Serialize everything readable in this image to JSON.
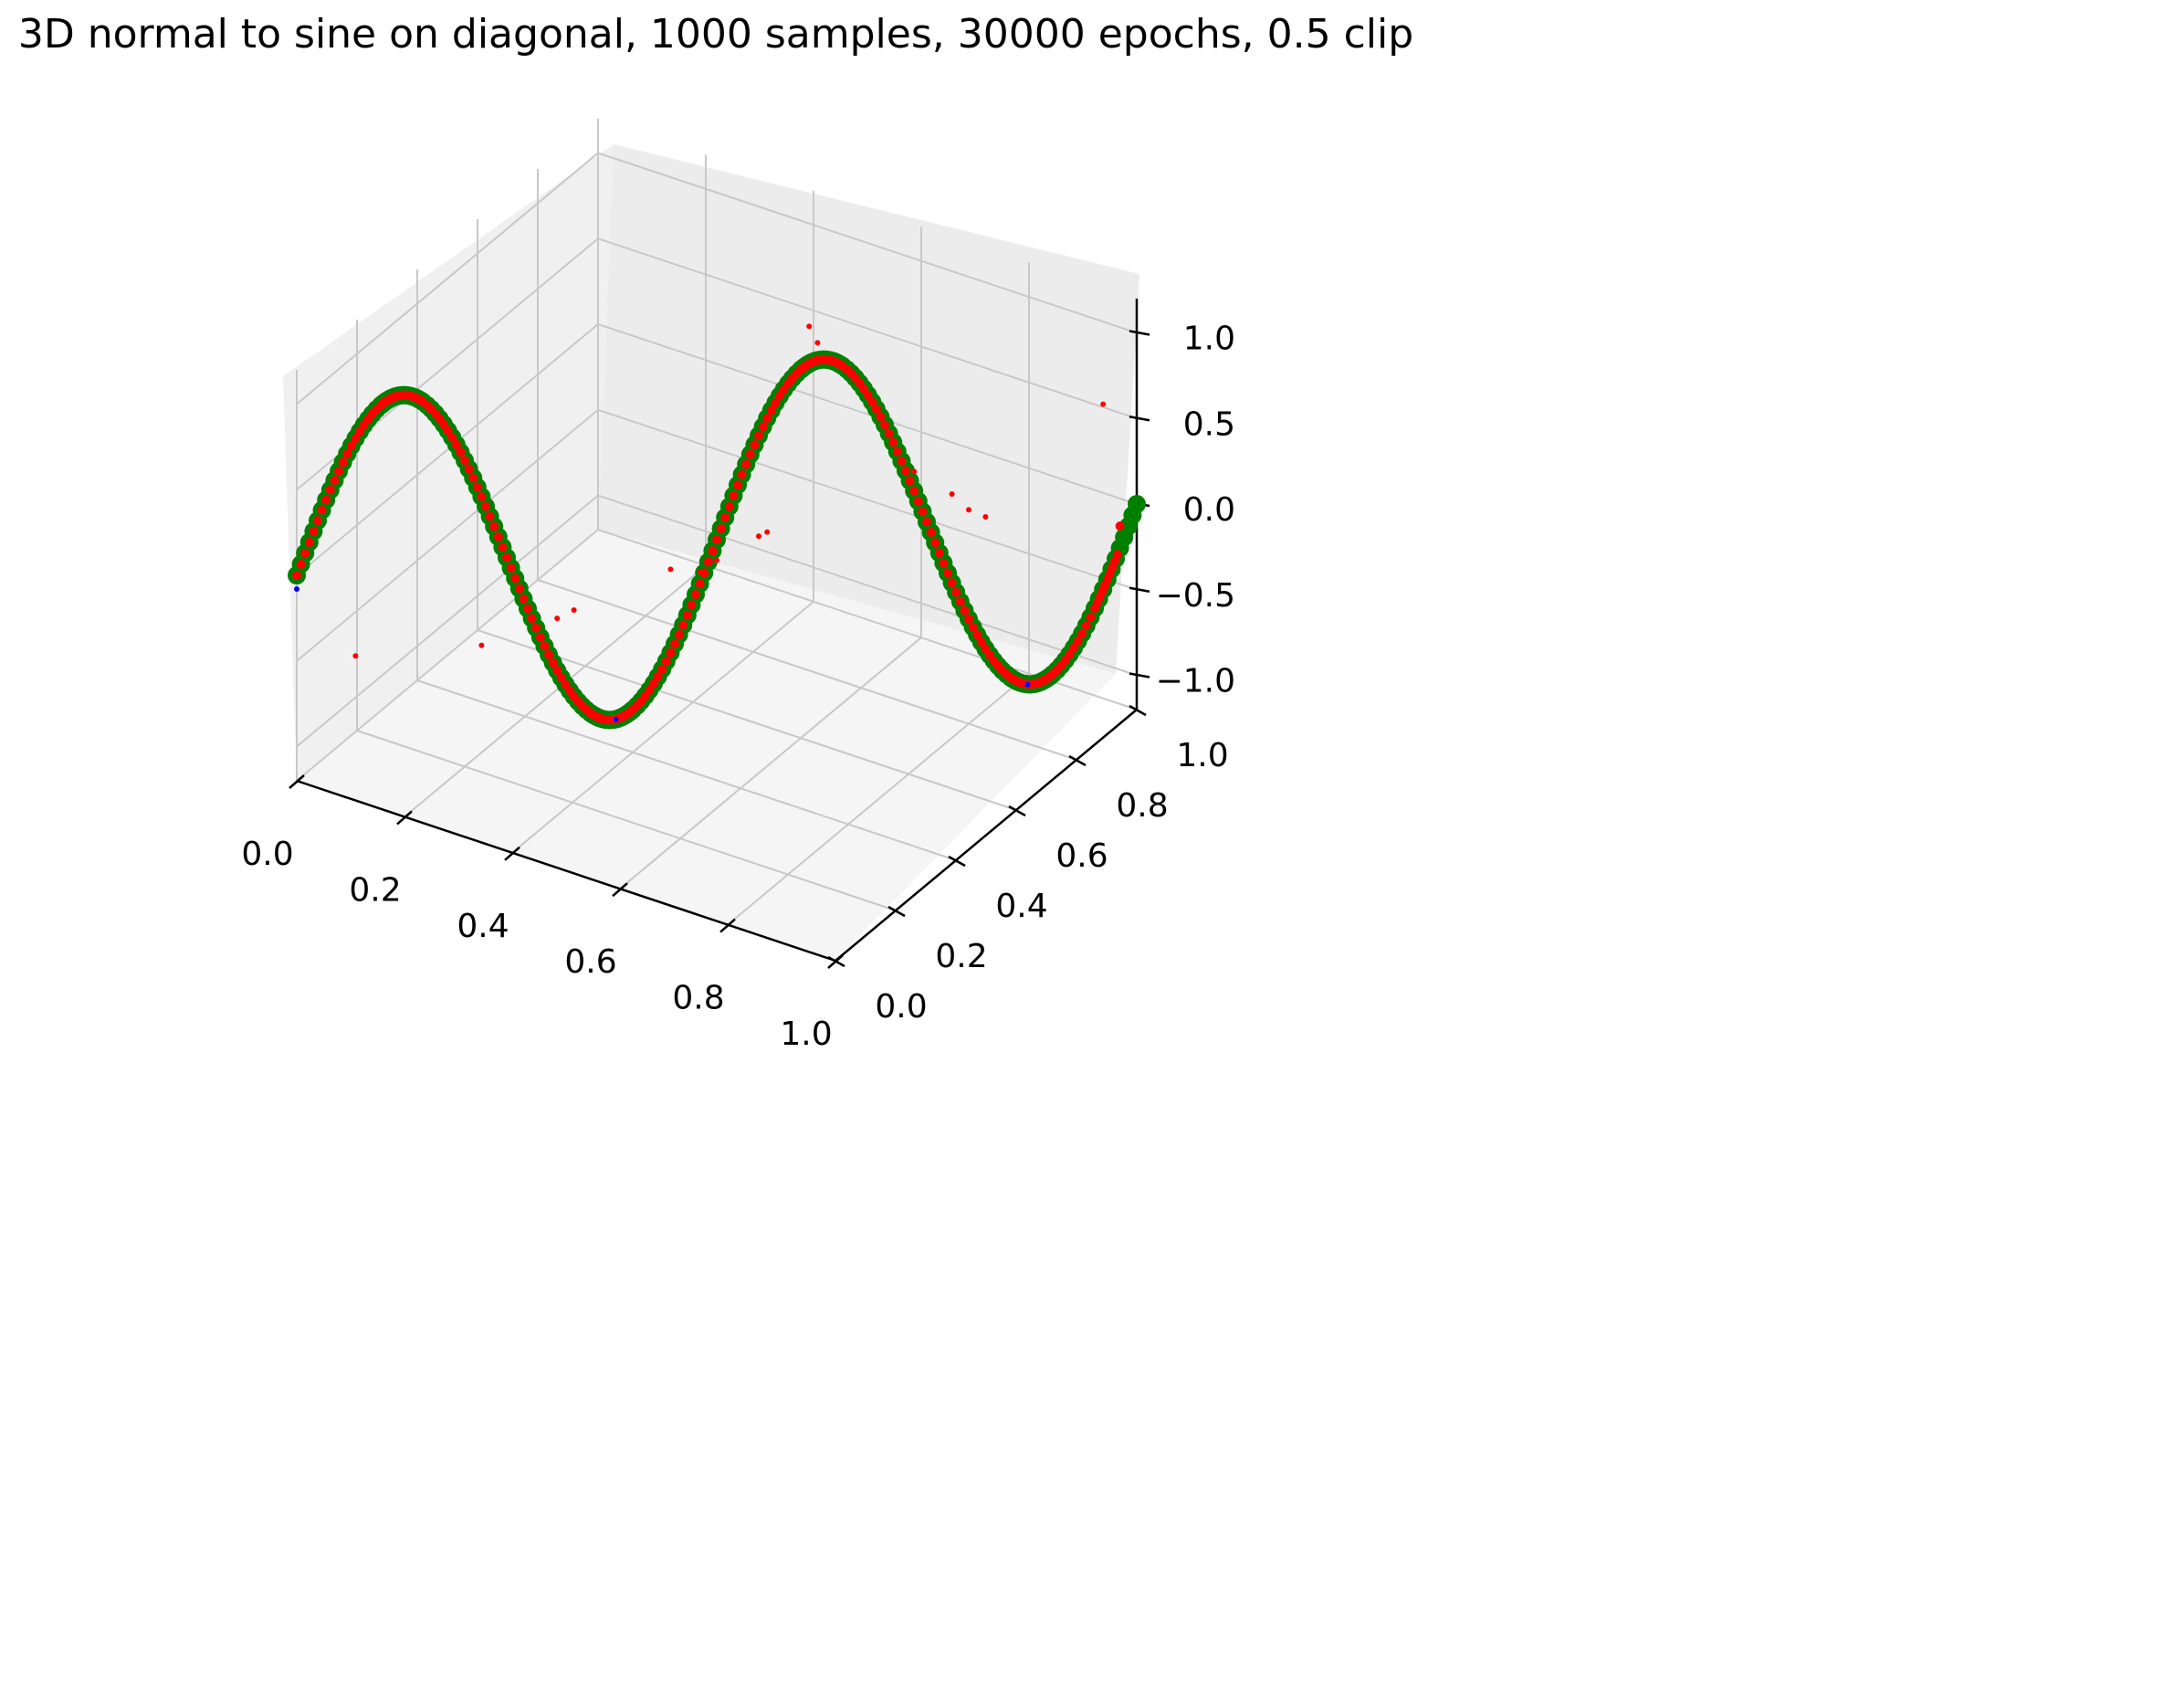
{
  "chart_data": {
    "type": "scatter",
    "title": "3D normal to sine on diagonal, 1000 samples, 30000 epochs, 0.5 clip",
    "projection": "3d",
    "xlim": [
      0.0,
      1.0
    ],
    "ylim": [
      0.0,
      1.0
    ],
    "zlim": [
      -1.2,
      1.2
    ],
    "x_ticks": [
      "0.0",
      "0.2",
      "0.4",
      "0.6",
      "0.8",
      "1.0"
    ],
    "y_ticks": [
      "0.0",
      "0.2",
      "0.4",
      "0.6",
      "0.8",
      "1.0"
    ],
    "z_ticks": [
      "−1.0",
      "−0.5",
      "0.0",
      "0.5",
      "1.0"
    ],
    "grid": true,
    "pane_color": "#f2f2f2",
    "series": [
      {
        "color": "#008000",
        "curve": "z = sin(4*pi*t), x = t, y = t",
        "t": [
          0.0,
          0.05,
          0.1,
          0.125,
          0.15,
          0.2,
          0.25,
          0.3,
          0.35,
          0.375,
          0.4,
          0.45,
          0.5,
          0.55,
          0.6,
          0.625,
          0.65,
          0.7,
          0.75,
          0.8,
          0.85,
          0.875,
          0.9,
          0.95,
          1.0
        ],
        "z": [
          0.0,
          0.59,
          0.95,
          1.0,
          0.95,
          0.59,
          0.0,
          -0.59,
          -0.95,
          -1.0,
          -0.95,
          -0.59,
          0.0,
          0.59,
          0.95,
          1.0,
          0.95,
          0.59,
          0.0,
          -0.59,
          -0.95,
          -1.0,
          -0.95,
          -0.59,
          0.0
        ]
      },
      {
        "color": "#ff0000",
        "curve": "z = sin(4*pi*t), x = t, y = t",
        "t": [
          0.0,
          0.05,
          0.1,
          0.125,
          0.15,
          0.2,
          0.25,
          0.3,
          0.35,
          0.375,
          0.4,
          0.45,
          0.5,
          0.55,
          0.6,
          0.625,
          0.65,
          0.7,
          0.75,
          0.8,
          0.85,
          0.875,
          0.9,
          0.95,
          0.98
        ],
        "z": [
          0.0,
          0.59,
          0.95,
          1.0,
          0.95,
          0.59,
          0.0,
          -0.59,
          -0.95,
          -1.0,
          -0.95,
          -0.59,
          0.0,
          0.59,
          0.95,
          1.0,
          0.95,
          0.59,
          0.0,
          -0.59,
          -0.95,
          -1.0,
          -0.95,
          -0.59,
          -0.12
        ]
      },
      {
        "color": "#0000ff",
        "points": [
          {
            "x": 0.0,
            "y": 0.0,
            "z": -0.08
          },
          {
            "x": 0.38,
            "y": 0.38,
            "z": -1.0
          },
          {
            "x": 0.87,
            "y": 0.87,
            "z": -1.0
          }
        ]
      },
      {
        "color": "#ff0000",
        "outliers": [
          {
            "x": 0.07,
            "y": 0.07,
            "z": -0.5
          },
          {
            "x": 0.22,
            "y": 0.22,
            "z": -0.5
          },
          {
            "x": 0.31,
            "y": 0.31,
            "z": -0.38
          },
          {
            "x": 0.33,
            "y": 0.33,
            "z": -0.34
          },
          {
            "x": 0.445,
            "y": 0.445,
            "z": -0.15
          },
          {
            "x": 0.48,
            "y": 0.48,
            "z": -0.18
          },
          {
            "x": 0.5,
            "y": 0.5,
            "z": -0.12
          },
          {
            "x": 0.55,
            "y": 0.55,
            "z": 0.0
          },
          {
            "x": 0.56,
            "y": 0.56,
            "z": 0.02
          },
          {
            "x": 0.61,
            "y": 0.61,
            "z": 1.2
          },
          {
            "x": 0.62,
            "y": 0.62,
            "z": 1.1
          },
          {
            "x": 0.735,
            "y": 0.735,
            "z": 0.3
          },
          {
            "x": 0.78,
            "y": 0.78,
            "z": 0.15
          },
          {
            "x": 0.8,
            "y": 0.8,
            "z": 0.05
          },
          {
            "x": 0.82,
            "y": 0.82,
            "z": 0.0
          },
          {
            "x": 0.96,
            "y": 0.96,
            "z": 0.6
          }
        ]
      }
    ]
  }
}
